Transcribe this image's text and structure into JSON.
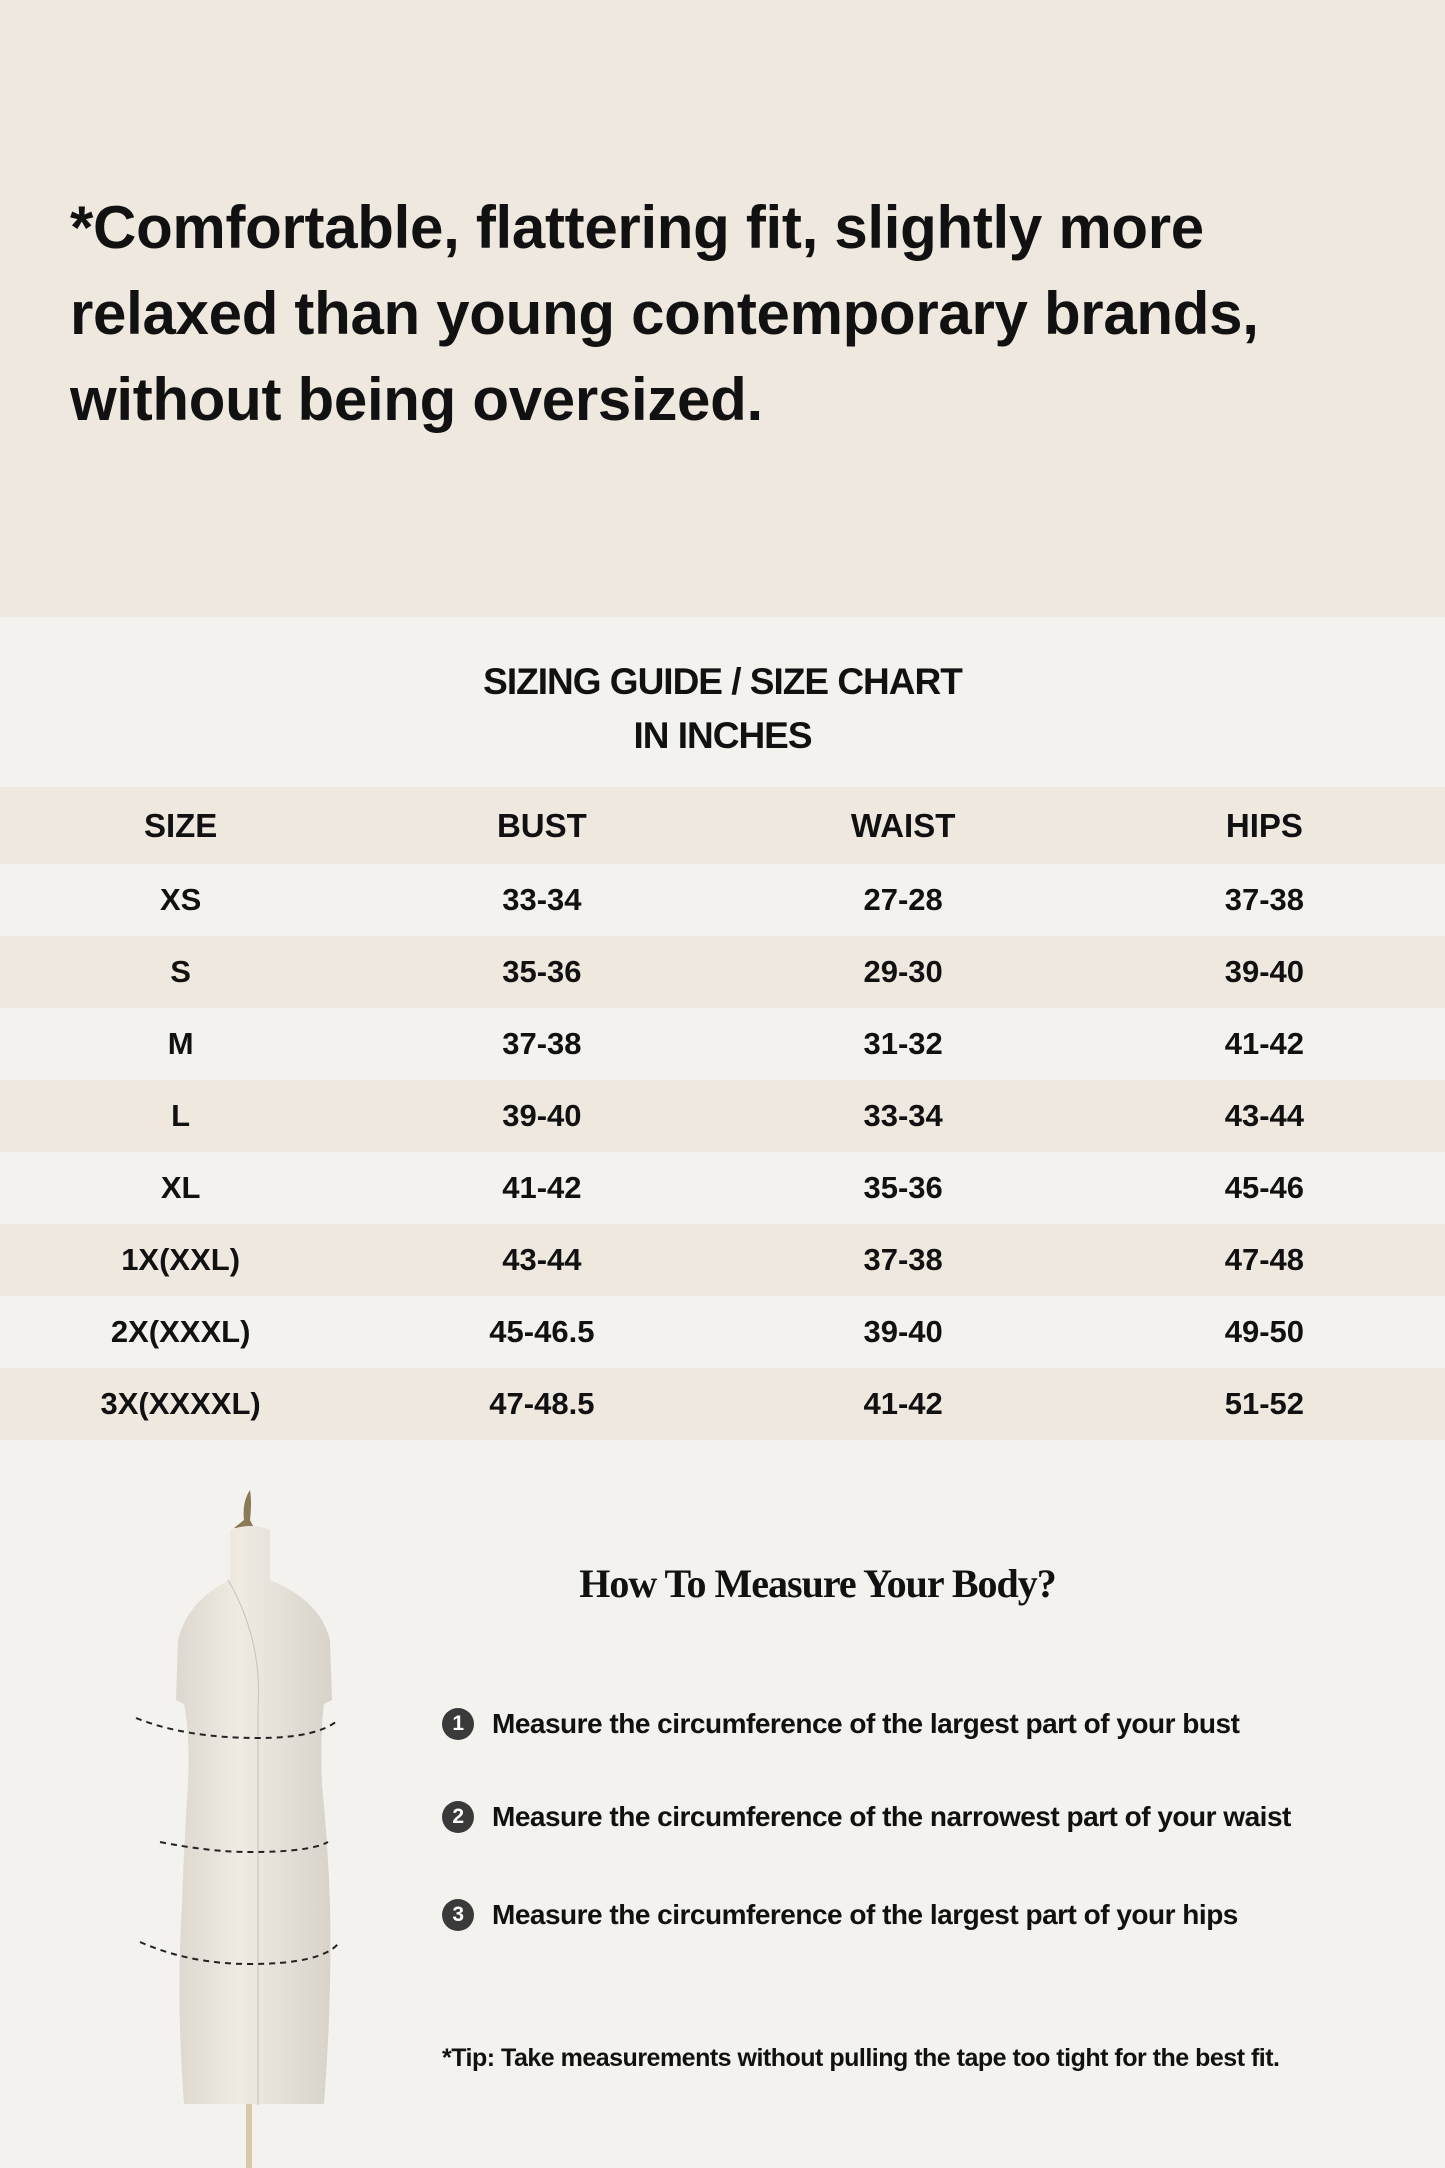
{
  "intro": {
    "lines": [
      "*Comfortable, flattering fit, slightly more",
      "relaxed than young contemporary brands,",
      "without being oversized."
    ]
  },
  "guide": {
    "title_line1": "SIZING GUIDE / SIZE CHART",
    "title_line2": "IN INCHES"
  },
  "table": {
    "headers": [
      "SIZE",
      "BUST",
      "WAIST",
      "HIPS"
    ],
    "rows": [
      [
        "XS",
        "33-34",
        "27-28",
        "37-38"
      ],
      [
        "S",
        "35-36",
        "29-30",
        "39-40"
      ],
      [
        "M",
        "37-38",
        "31-32",
        "41-42"
      ],
      [
        "L",
        "39-40",
        "33-34",
        "43-44"
      ],
      [
        "XL",
        "41-42",
        "35-36",
        "45-46"
      ],
      [
        "1X(XXL)",
        "43-44",
        "37-38",
        "47-48"
      ],
      [
        "2X(XXXL)",
        "45-46.5",
        "39-40",
        "49-50"
      ],
      [
        "3X(XXXXL)",
        "47-48.5",
        "41-42",
        "51-52"
      ]
    ]
  },
  "howto": {
    "title": "How To Measure Your Body?",
    "steps": [
      {
        "num": "1",
        "text": "Measure the circumference of the largest part of your bust"
      },
      {
        "num": "2",
        "text": "Measure the circumference of the narrowest part of your waist"
      },
      {
        "num": "3",
        "text": "Measure the circumference of the largest part of your hips"
      }
    ],
    "tip": "*Tip: Take measurements without pulling the tape too tight for the best fit."
  },
  "colors": {
    "top_bg": "#efe8df",
    "page_bg": "#f4f2ee",
    "stripe": "#efe8df",
    "text": "#111111"
  }
}
